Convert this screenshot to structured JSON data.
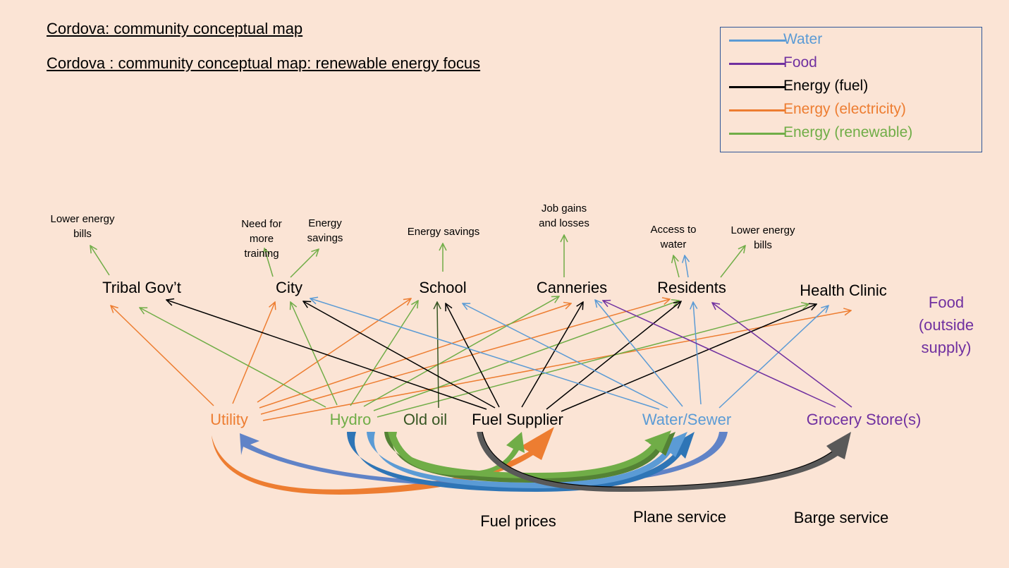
{
  "titles": {
    "main": "Cordova: community conceptual map",
    "sub": "Cordova : community conceptual map: renewable energy focus"
  },
  "colors": {
    "water": "#5b9bd5",
    "water_dark": "#2e75b6",
    "food": "#7030a0",
    "energy_fuel": "#000000",
    "energy_electricity": "#ed7d31",
    "energy_renewable": "#70ad47",
    "old_oil": "#375623",
    "gray_arrow": "#595959",
    "background": "#fbe4d5"
  },
  "legend": [
    {
      "label": "Water",
      "color": "#5b9bd5"
    },
    {
      "label": "Food",
      "color": "#7030a0"
    },
    {
      "label": "Energy (fuel)",
      "color": "#000000"
    },
    {
      "label": "Energy (electricity)",
      "color": "#ed7d31"
    },
    {
      "label": "Energy (renewable)",
      "color": "#70ad47"
    }
  ],
  "top_nodes": {
    "tribal": "Tribal Gov’t",
    "city": "City",
    "school": "School",
    "canneries": "Canneries",
    "residents": "Residents",
    "clinic": "Health Clinic"
  },
  "source_nodes": {
    "utility": "Utility",
    "hydro": "Hydro",
    "old_oil": "Old oil",
    "fuel_supplier": "Fuel Supplier",
    "water_sewer": "Water/Sewer",
    "grocery": "Grocery Store(s)"
  },
  "outcomes": {
    "tribal_bills": [
      "Lower energy",
      "bills"
    ],
    "city_training": [
      "Need for",
      "more",
      "training"
    ],
    "city_savings": [
      "Energy",
      "savings"
    ],
    "school_savings": [
      "Energy savings"
    ],
    "canneries_jobs": [
      "Job gains",
      "and losses"
    ],
    "residents_water": [
      "Access to",
      "water"
    ],
    "residents_bills": [
      "Lower energy",
      "bills"
    ]
  },
  "food_outside": [
    "Food",
    "(outside",
    "supply)"
  ],
  "bottom_labels": {
    "fuel_prices": "Fuel prices",
    "plane": "Plane service",
    "barge": "Barge service"
  }
}
